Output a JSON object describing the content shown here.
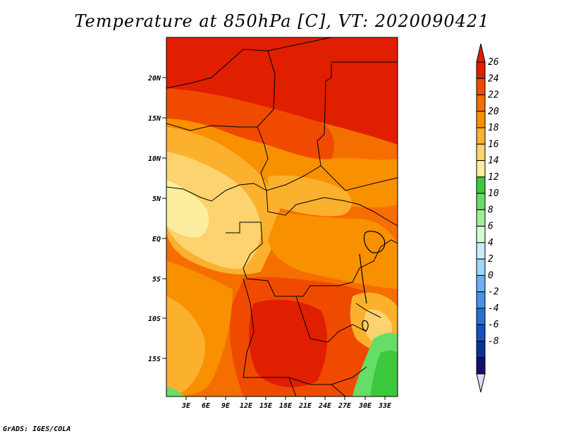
{
  "title": "Temperature at 850hPa [C], VT: 2020090421",
  "footer": "GrADS: IGES/COLA",
  "lat_ticks": [
    "20N",
    "15N",
    "10N",
    "5N",
    "EQ",
    "5S",
    "10S",
    "15S"
  ],
  "lon_ticks": [
    "3E",
    "6E",
    "9E",
    "12E",
    "15E",
    "18E",
    "21E",
    "24E",
    "27E",
    "30E",
    "33E"
  ],
  "colorbar": {
    "labels": [
      "26",
      "24",
      "22",
      "20",
      "18",
      "16",
      "14",
      "12",
      "10",
      "8",
      "6",
      "4",
      "2",
      "0",
      "-2",
      "-4",
      "-6",
      "-8"
    ],
    "colors": [
      "#e01e00",
      "#f04a00",
      "#f56e00",
      "#f99000",
      "#fbb12e",
      "#fcd36e",
      "#fcee9e",
      "#3cc83c",
      "#66dd66",
      "#a0ec9a",
      "#d6f8d6",
      "#c8ecfa",
      "#a2d4f8",
      "#6cb0f0",
      "#4a90e8",
      "#2a6ed8",
      "#1450c0",
      "#0a2f98",
      "#10106e"
    ],
    "arrow_low_color": "#e0dcf8"
  },
  "map": {
    "domain": "Central / Southern-Central Africa",
    "lat_range": [
      -19,
      25
    ],
    "lon_range": [
      0,
      35
    ],
    "field": "850hPa temperature (C)"
  }
}
